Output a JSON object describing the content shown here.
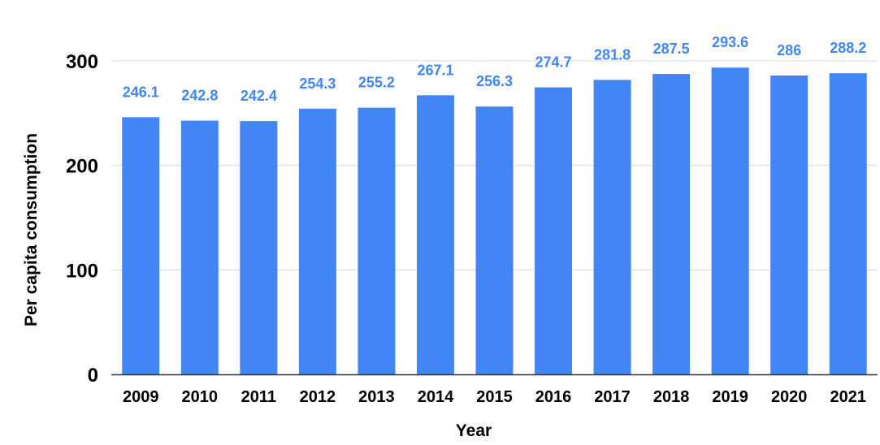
{
  "chart_data": {
    "type": "bar",
    "title": "",
    "xlabel": "Year",
    "ylabel": "Per capita consumption",
    "categories": [
      "2009",
      "2010",
      "2011",
      "2012",
      "2013",
      "2014",
      "2015",
      "2016",
      "2017",
      "2018",
      "2019",
      "2020",
      "2021"
    ],
    "values": [
      246.1,
      242.8,
      242.4,
      254.3,
      255.2,
      267.1,
      256.3,
      274.7,
      281.8,
      287.5,
      293.6,
      286,
      288.2
    ],
    "data_labels": [
      "246.1",
      "242.8",
      "242.4",
      "254.3",
      "255.2",
      "267.1",
      "256.3",
      "274.7",
      "281.8",
      "287.5",
      "293.6",
      "286",
      "288.2"
    ],
    "y_ticks": [
      0,
      100,
      200,
      300
    ],
    "ylim": [
      0,
      300
    ],
    "grid": true,
    "legend": "none",
    "colors": {
      "bar": "#4285f4",
      "data_label": "#4285f4",
      "grid": "#d9d9d9",
      "baseline": "#333333"
    }
  }
}
